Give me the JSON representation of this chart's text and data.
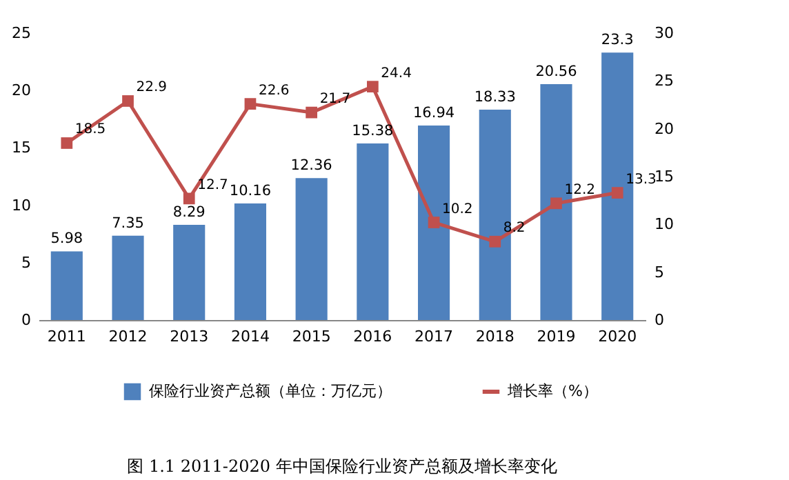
{
  "chart_data": {
    "type": "bar",
    "title": "图 1.1 2011-2020 年中国保险行业资产总额及增长率变化",
    "categories": [
      "2011",
      "2012",
      "2013",
      "2014",
      "2015",
      "2016",
      "2017",
      "2018",
      "2019",
      "2020"
    ],
    "series": [
      {
        "name": "保险行业资产总额（单位：万亿元）",
        "type": "bar",
        "color": "#4f81bd",
        "values": [
          5.98,
          7.35,
          8.29,
          10.16,
          12.36,
          15.38,
          16.94,
          18.33,
          20.56,
          23.3
        ]
      },
      {
        "name": "增长率（%）",
        "type": "line",
        "axis": "y2",
        "color": "#c0504d",
        "marker": "square",
        "values": [
          18.5,
          22.9,
          12.7,
          22.6,
          21.7,
          24.4,
          10.2,
          8.2,
          12.2,
          13.3
        ]
      }
    ],
    "ylim": [
      0,
      25
    ],
    "yticks": [
      0,
      5,
      10,
      15,
      20,
      25
    ],
    "y2lim": [
      0,
      30
    ],
    "y2ticks": [
      0,
      5,
      10,
      15,
      20,
      25,
      30
    ],
    "data_labels": true,
    "grid": false,
    "legend": "bottom"
  }
}
